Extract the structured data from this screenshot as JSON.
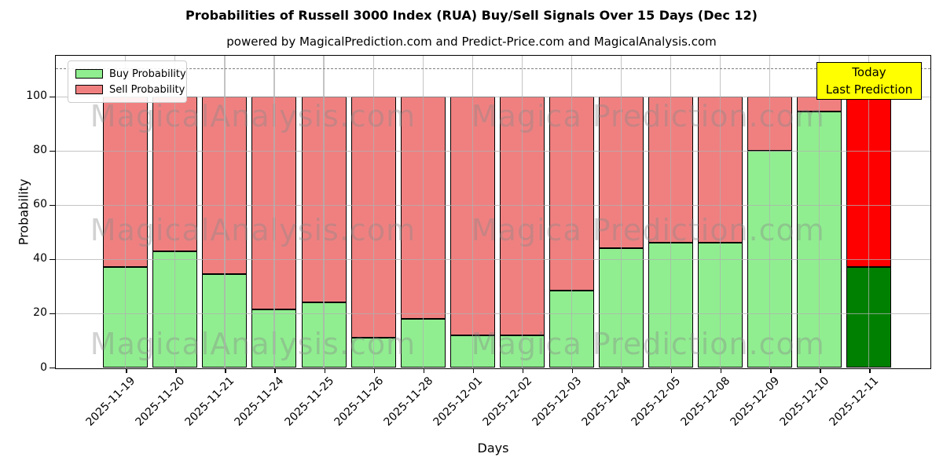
{
  "title": "Probabilities of Russell 3000 Index (RUA) Buy/Sell Signals Over 15 Days (Dec 12)",
  "subtitle": "powered by MagicalPrediction.com and Predict-Price.com and MagicalAnalysis.com",
  "axes": {
    "x_label": "Days",
    "y_label": "Probability",
    "y_ticks": [
      0,
      20,
      40,
      60,
      80,
      100
    ],
    "y_max": 115,
    "dashed_line_y": 110,
    "grid": true
  },
  "legend": {
    "position": "upper left",
    "items": [
      {
        "label": "Buy Probability",
        "color": "#90EE90"
      },
      {
        "label": "Sell Probability",
        "color": "#F08080"
      }
    ]
  },
  "annotation": {
    "line1": "Today",
    "line2": "Last Prediction",
    "bg_color": "#FFFF00",
    "border_color": "#000000"
  },
  "watermarks": {
    "left_text": "MagicalAnalysis.com",
    "right_text": "Magica Prediction.com",
    "color": "#8a8a8a",
    "rows": 3
  },
  "colors": {
    "buy": "#90EE90",
    "sell": "#F08080",
    "today_buy": "#008000",
    "today_sell": "#FF0000",
    "bar_edge": "#000000",
    "grid": "#b0b0b0",
    "dashed_line": "#7f7f7f",
    "background": "#FFFFFF"
  },
  "chart_data": {
    "type": "bar",
    "stacked": true,
    "title": "Probabilities of Russell 3000 Index (RUA) Buy/Sell Signals Over 15 Days (Dec 12)",
    "xlabel": "Days",
    "ylabel": "Probability",
    "ylim": [
      0,
      115
    ],
    "legend_position": "upper left",
    "grid": true,
    "dashed_threshold": 110,
    "categories": [
      "2025-11-19",
      "2025-11-20",
      "2025-11-21",
      "2025-11-24",
      "2025-11-25",
      "2025-11-26",
      "2025-11-28",
      "2025-12-01",
      "2025-12-02",
      "2025-12-03",
      "2025-12-04",
      "2025-12-05",
      "2025-12-08",
      "2025-12-09",
      "2025-12-10",
      "2025-12-11"
    ],
    "series": [
      {
        "name": "Buy Probability",
        "color": "#90EE90",
        "values": [
          37,
          43,
          34.5,
          21.5,
          24,
          11,
          18,
          12,
          12,
          28.5,
          44,
          46,
          46,
          80,
          94.5,
          37
        ]
      },
      {
        "name": "Sell Probability",
        "color": "#F08080",
        "values": [
          63,
          57,
          65.5,
          78.5,
          76,
          89,
          82,
          88,
          88,
          71.5,
          56,
          54,
          54,
          20,
          5.5,
          63
        ]
      }
    ],
    "today": {
      "index": 15,
      "category": "2025-12-11",
      "buy_color": "#008000",
      "sell_color": "#FF0000",
      "label": "Today Last Prediction"
    }
  }
}
